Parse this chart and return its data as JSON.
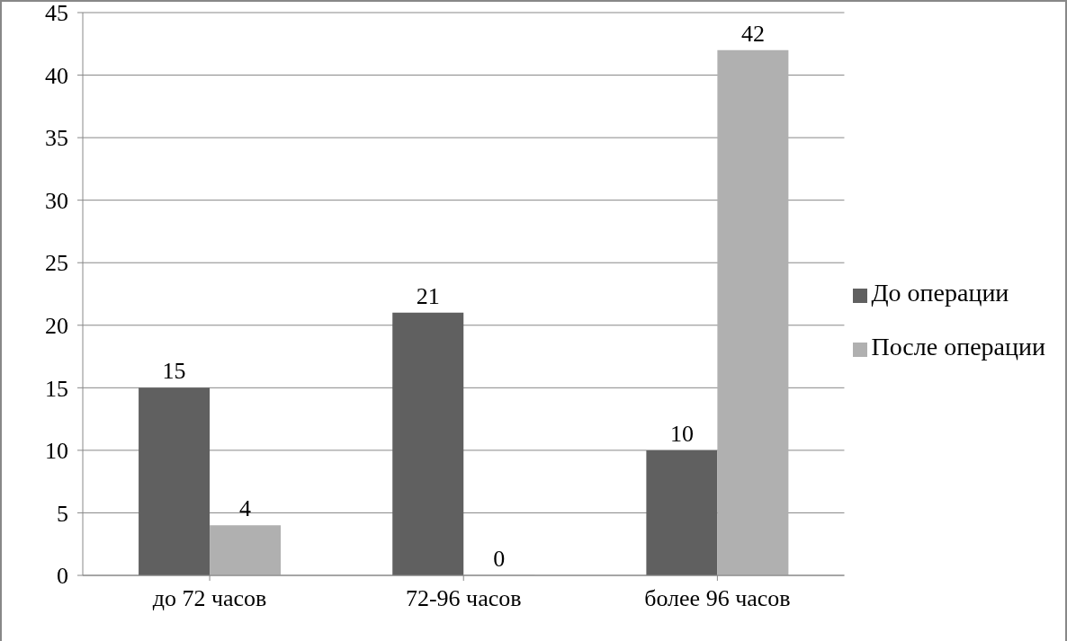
{
  "chart_data": {
    "type": "bar",
    "categories": [
      "до 72 часов",
      "72-96 часов",
      "более 96 часов"
    ],
    "series": [
      {
        "name": "До операции",
        "color": "#606060",
        "values": [
          15,
          21,
          10
        ]
      },
      {
        "name": "После операции",
        "color": "#b0b0b0",
        "values": [
          4,
          0,
          42
        ]
      }
    ],
    "ylim": [
      0,
      45
    ],
    "yticks": [
      0,
      5,
      10,
      15,
      20,
      25,
      30,
      35,
      40,
      45
    ],
    "grid": "y",
    "legend": "right",
    "data_labels": true
  }
}
